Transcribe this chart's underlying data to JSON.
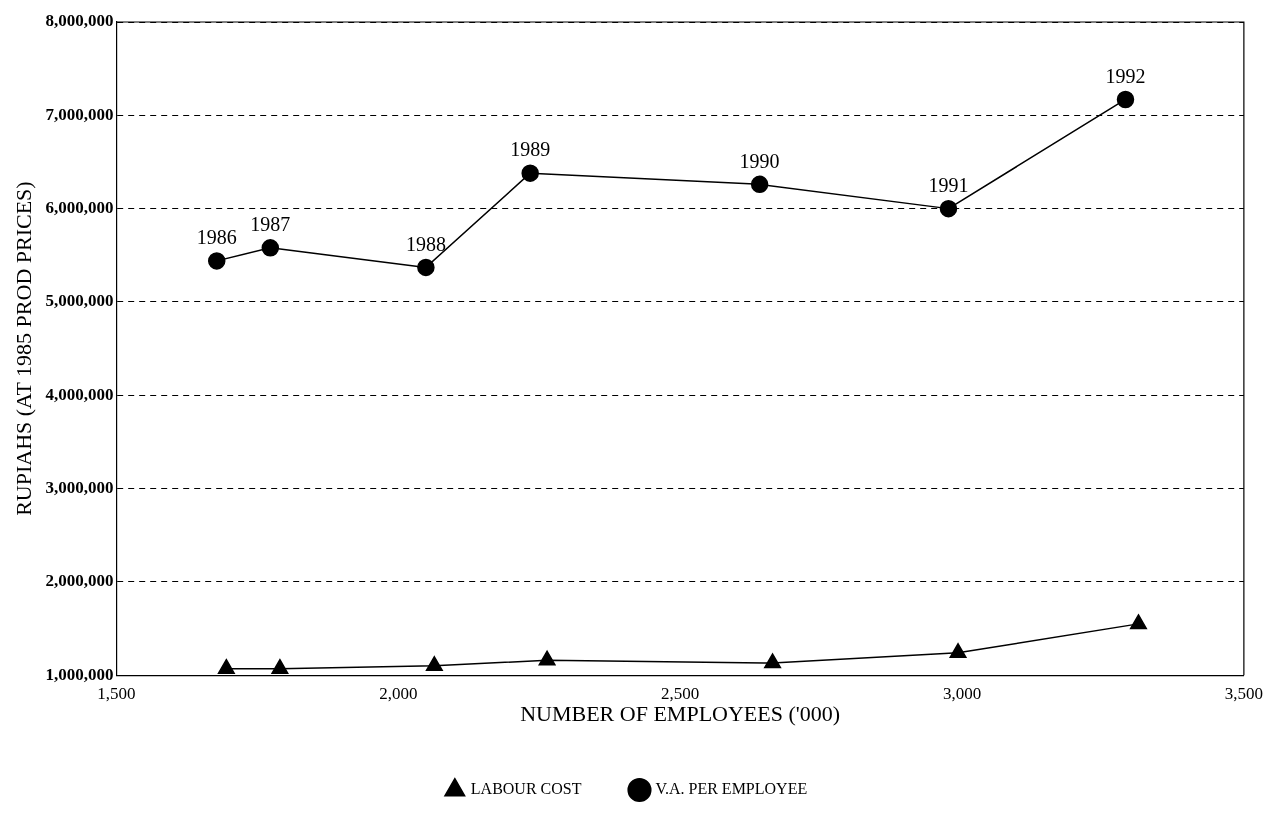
{
  "chart_data": {
    "type": "line",
    "xlabel": "NUMBER OF EMPLOYEES ('000)",
    "ylabel": "RUPIAHS (AT 1985 PROD PRICES)",
    "series": [
      {
        "name": "LABOUR COST",
        "color": "#000000",
        "marker": "triangle",
        "x": [
          1695,
          1790,
          2064,
          2264,
          2664,
          2993,
          3313
        ],
        "values": [
          1070000,
          1070000,
          1100000,
          1160000,
          1130000,
          1240000,
          1550000
        ]
      },
      {
        "name": "V.A. PER EMPLOYEE",
        "color": "#000000",
        "marker": "circle",
        "x": [
          1678,
          1773,
          2049,
          2234,
          2641,
          2976,
          3290
        ],
        "values": [
          5440000,
          5580000,
          5370000,
          6380000,
          6260000,
          6000000,
          7170000
        ]
      }
    ],
    "xlim": [
      1500,
      3500
    ],
    "xticks": [
      {
        "value": 1500,
        "label": "1,500"
      },
      {
        "value": 2000,
        "label": "2,000"
      },
      {
        "value": 2500,
        "label": "2,500"
      },
      {
        "value": 3000,
        "label": "3,000"
      },
      {
        "value": 3500,
        "label": "3,500"
      }
    ],
    "ylim": [
      1000000,
      8000000
    ],
    "yticks": [
      {
        "value": 1000000,
        "label": "1,000,000"
      },
      {
        "value": 2000000,
        "label": "2,000,000"
      },
      {
        "value": 3000000,
        "label": "3,000,000"
      },
      {
        "value": 4000000,
        "label": "4,000,000"
      },
      {
        "value": 5000000,
        "label": "5,000,000"
      },
      {
        "value": 6000000,
        "label": "6,000,000"
      },
      {
        "value": 7000000,
        "label": "7,000,000"
      },
      {
        "value": 8000000,
        "label": "8,000,000"
      }
    ],
    "grid": "y",
    "legend": "bottom",
    "line_style": "solid",
    "annotations": [
      {
        "text": "1986",
        "x": 1678,
        "y": 5440000
      },
      {
        "text": "1987",
        "x": 1773,
        "y": 5580000
      },
      {
        "text": "1988",
        "x": 2049,
        "y": 5370000
      },
      {
        "text": "1989",
        "x": 2234,
        "y": 6380000
      },
      {
        "text": "1990",
        "x": 2641,
        "y": 6260000
      },
      {
        "text": "1991",
        "x": 2976,
        "y": 6000000
      },
      {
        "text": "1992",
        "x": 3290,
        "y": 7170000
      }
    ]
  }
}
